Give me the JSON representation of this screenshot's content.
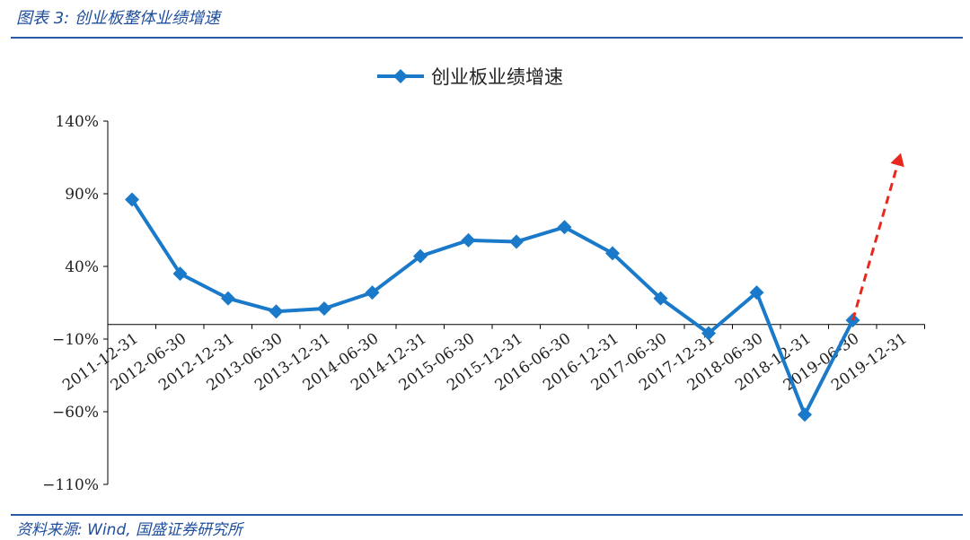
{
  "figure": {
    "title": "图表 3:  创业板整体业绩增速",
    "source": "资料来源: Wind, 国盛证券研究所"
  },
  "colors": {
    "series": "#1a7ac9",
    "trend_arrow": "#e8281e",
    "rule": "#2b5aa8",
    "axis": "#000000"
  },
  "chart_data": {
    "type": "line",
    "x": [
      "2011-12-31",
      "2012-06-30",
      "2012-12-31",
      "2013-06-30",
      "2013-12-31",
      "2014-06-30",
      "2014-12-31",
      "2015-06-30",
      "2015-12-31",
      "2016-06-30",
      "2016-12-31",
      "2017-06-30",
      "2017-12-31",
      "2018-06-30",
      "2018-12-31",
      "2019-06-30",
      "2019-12-31"
    ],
    "series": [
      {
        "name": "创业板业绩增速",
        "values": [
          86,
          35,
          18,
          9,
          11,
          22,
          47,
          58,
          57,
          67,
          49,
          18,
          -6,
          22,
          -62,
          3,
          null
        ],
        "marker": "diamond"
      }
    ],
    "annotations": [
      {
        "type": "dashed-arrow",
        "from": [
          "2019-06-30",
          3
        ],
        "to": [
          "2019-12-31",
          118
        ],
        "color": "#e8281e"
      }
    ],
    "y_ticks": [
      140,
      90,
      40,
      -10,
      -60,
      -110
    ],
    "y_tick_labels": [
      "140%",
      "90%",
      "40%",
      "−10%",
      "−60%",
      "−110%"
    ],
    "ylim": [
      -110,
      140
    ],
    "x_axis_at": 0,
    "grid": false,
    "legend_position": "top-center",
    "title": "",
    "xlabel": "",
    "ylabel": ""
  }
}
